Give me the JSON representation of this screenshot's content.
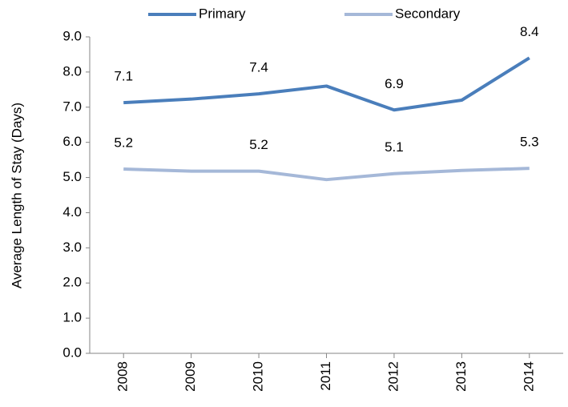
{
  "chart_data": {
    "type": "line",
    "y_label": "Average Length of Stay (Days)",
    "categories": [
      "2008",
      "2009",
      "2010",
      "2011",
      "2012",
      "2013",
      "2014"
    ],
    "series": [
      {
        "name": "Primary",
        "color": "#4a7ebb",
        "values": [
          7.13,
          7.23,
          7.38,
          7.6,
          6.92,
          7.2,
          8.4
        ],
        "value_labels": [
          "7.1",
          null,
          "7.4",
          null,
          "6.9",
          null,
          "8.4"
        ]
      },
      {
        "name": "Secondary",
        "color": "#a5b8d8",
        "values": [
          5.24,
          5.18,
          5.18,
          4.94,
          5.11,
          5.2,
          5.26
        ],
        "value_labels": [
          "5.2",
          null,
          "5.2",
          null,
          "5.1",
          null,
          "5.3"
        ]
      }
    ],
    "ylim": [
      0,
      9
    ],
    "yticks": [
      {
        "value": 0,
        "label": "0.0"
      },
      {
        "value": 1,
        "label": "1.0"
      },
      {
        "value": 2,
        "label": "2.0"
      },
      {
        "value": 3,
        "label": "3.0"
      },
      {
        "value": 4,
        "label": "4.0"
      },
      {
        "value": 5,
        "label": "5.0"
      },
      {
        "value": 6,
        "label": "6.0"
      },
      {
        "value": 7,
        "label": "7.0"
      },
      {
        "value": 8,
        "label": "8.0"
      },
      {
        "value": 9,
        "label": "9.0"
      }
    ],
    "legend": "top"
  }
}
